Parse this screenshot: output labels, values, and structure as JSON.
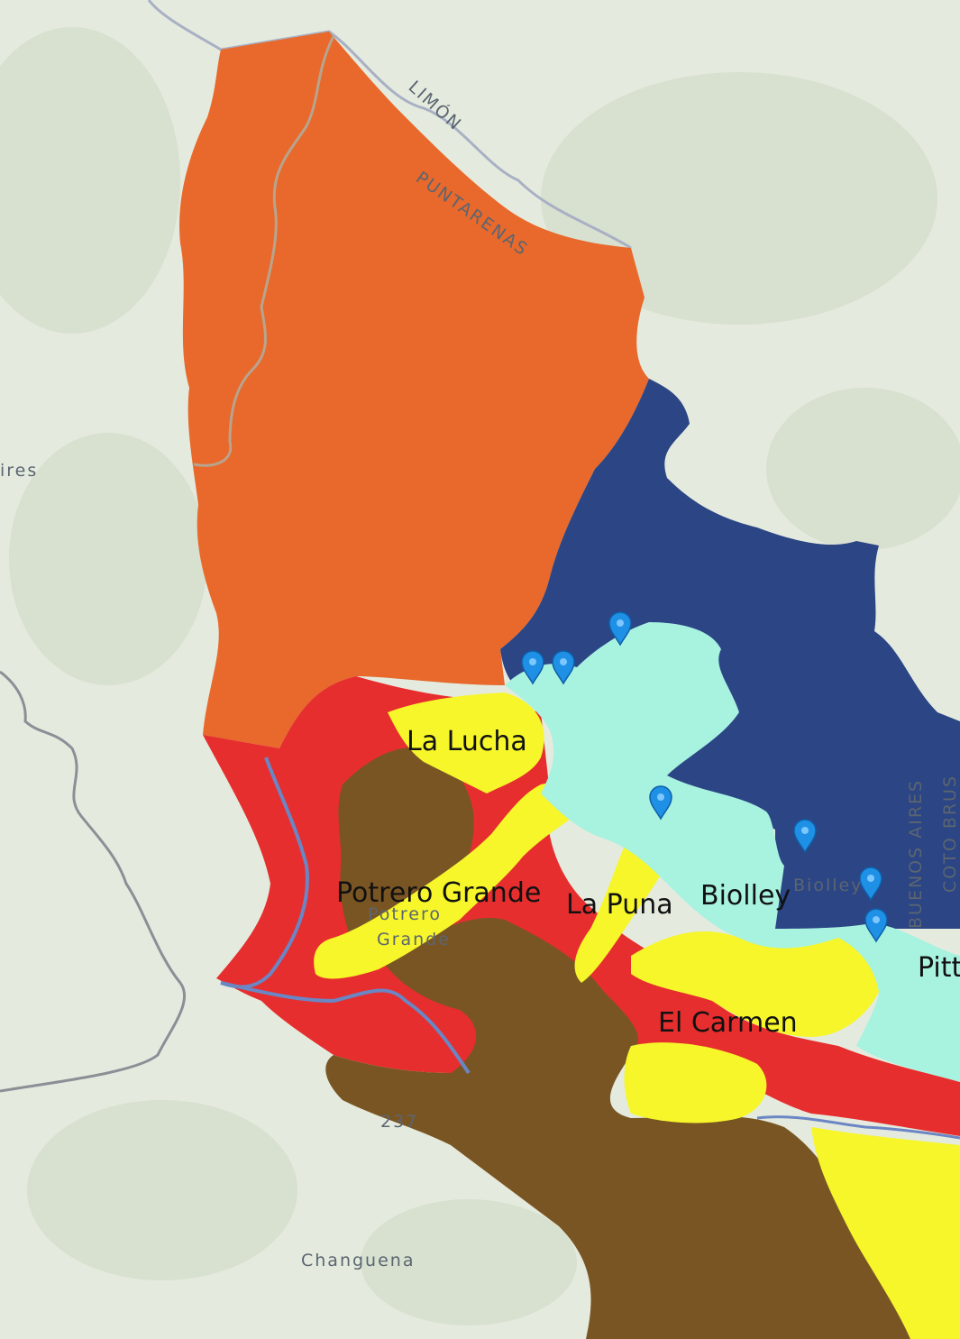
{
  "basemap": {
    "labels": {
      "limon": "LIMÓN",
      "puntarenas": "PUNTARENAS",
      "aires_edge": "ires",
      "buenos_aires": "BUENOS AIRES",
      "coto_brus": "COTO BRUS",
      "changuena": "Changuena",
      "potrero_faded": "Potrero",
      "grande_faded": "Grande",
      "biolley_faded": "Biolley",
      "route": "237"
    },
    "colors": {
      "land": "#e4ebde",
      "terrain_shade": "#d3dccb",
      "river": "#6b86c4",
      "border": "#8b8f96"
    }
  },
  "zones": [
    {
      "id": "orange",
      "color": "#e8692b"
    },
    {
      "id": "navy",
      "color": "#2b4585"
    },
    {
      "id": "cyan",
      "color": "#a8f2e0"
    },
    {
      "id": "red",
      "color": "#e62e2e"
    },
    {
      "id": "brown",
      "color": "#7a5524"
    },
    {
      "id": "yellow",
      "color": "#f6f62a"
    }
  ],
  "places": [
    {
      "name": "La Lucha"
    },
    {
      "name": "Potrero Grande"
    },
    {
      "name": "La Puna"
    },
    {
      "name": "Biolley"
    },
    {
      "name": "El Carmen"
    },
    {
      "name": "Pitt"
    }
  ],
  "markers": {
    "count": 7,
    "color": "#1e90e6",
    "icon": "map-pin-icon"
  }
}
